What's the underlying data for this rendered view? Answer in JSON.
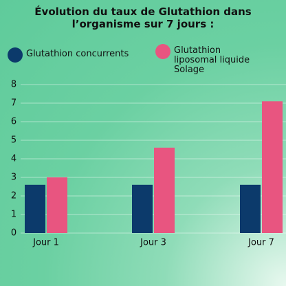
{
  "chart_data": {
    "type": "bar",
    "title": "Évolution du taux de Glutathion dans l’organisme sur 7 jours :",
    "categories": [
      "Jour 1",
      "Jour 3",
      "Jour 7"
    ],
    "series": [
      {
        "name": "Glutathion concurrents",
        "color": "#0c3a6b",
        "values": [
          2.6,
          2.6,
          2.6
        ]
      },
      {
        "name": "Glutathion liposomal liquide Solage",
        "color": "#e85580",
        "values": [
          3.0,
          4.6,
          7.1
        ]
      }
    ],
    "ylim": [
      0,
      8
    ],
    "yticks": [
      0,
      1,
      2,
      3,
      4,
      5,
      6,
      7,
      8
    ],
    "grid": true
  }
}
